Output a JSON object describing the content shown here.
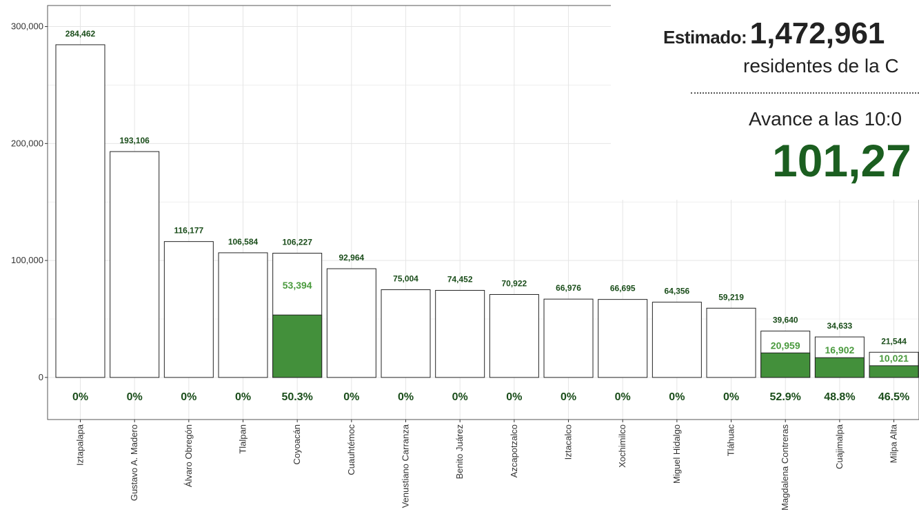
{
  "summary": {
    "estimate_label": "Estimado:",
    "estimate_value": "1,472,961",
    "residents_text": "residentes de la C",
    "progress_label": "Avance a las 10:0",
    "progress_value": "101,27"
  },
  "chart_data": {
    "type": "bar",
    "categories": [
      "Iztapalapa",
      "Gustavo A. Madero",
      "Álvaro Obregón",
      "Tlalpan",
      "Coyoacán",
      "Cuauhtémoc",
      "Venustiano Carranza",
      "Benito Juárez",
      "Azcapotzalco",
      "Iztacalco",
      "Xochimilco",
      "Miguel Hidalgo",
      "Tláhuac",
      "Magdalena Contreras",
      "Cuajimalpa",
      "Milpa Alta"
    ],
    "series": [
      {
        "values": [
          284462,
          193106,
          116177,
          106584,
          106227,
          92964,
          75004,
          74452,
          70922,
          66976,
          66695,
          64356,
          59219,
          39640,
          34633,
          21544
        ]
      },
      {
        "values": [
          0,
          0,
          0,
          0,
          53394,
          0,
          0,
          0,
          0,
          0,
          0,
          0,
          0,
          20959,
          16902,
          10021
        ]
      }
    ],
    "total_labels": [
      "284,462",
      "193,106",
      "116,177",
      "106,584",
      "106,227",
      "92,964",
      "75,004",
      "74,452",
      "70,922",
      "66,976",
      "66,695",
      "64,356",
      "59,219",
      "39,640",
      "34,633",
      "21,544"
    ],
    "advance_labels": [
      "",
      "",
      "",
      "",
      "53,394",
      "",
      "",
      "",
      "",
      "",
      "",
      "",
      "",
      "20,959",
      "16,902",
      "10,021"
    ],
    "percent_labels": [
      "0%",
      "0%",
      "0%",
      "0%",
      "50.3%",
      "0%",
      "0%",
      "0%",
      "0%",
      "0%",
      "0%",
      "0%",
      "0%",
      "52.9%",
      "48.8%",
      "46.5%"
    ],
    "y_ticks": [
      0,
      100000,
      200000,
      300000
    ],
    "y_tick_labels": [
      "0",
      "100,000",
      "200,000",
      "300,000"
    ],
    "ylim": [
      -36000,
      318000
    ],
    "grid": true,
    "colors": {
      "advance": "#43903b",
      "advance_text": "#4a9a3e",
      "label_text": "#1a4d1a",
      "bar_outline": "#222222",
      "grid": "#e5e5e5"
    }
  }
}
